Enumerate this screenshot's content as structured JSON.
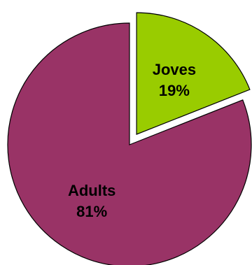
{
  "chart_data": {
    "type": "pie",
    "title": "",
    "exploded": "Joves",
    "slices": [
      {
        "label": "Joves",
        "value": 19,
        "value_label": "19%",
        "color": "#99cc00"
      },
      {
        "label": "Adults",
        "value": 81,
        "value_label": "81%",
        "color": "#993366"
      }
    ]
  }
}
